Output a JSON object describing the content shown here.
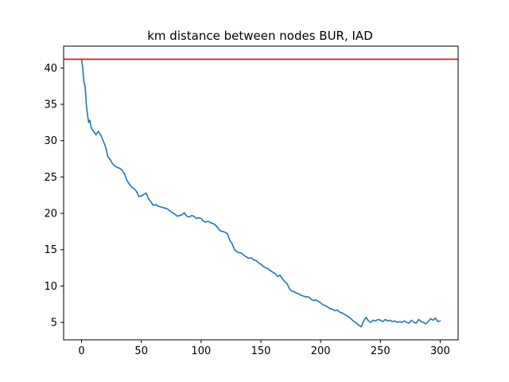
{
  "chart_data": {
    "type": "line",
    "title": "km distance between nodes BUR, IAD",
    "xlabel": "",
    "ylabel": "",
    "xlim": [
      -15,
      315
    ],
    "ylim": [
      2.6,
      43.0
    ],
    "x_ticks": [
      0,
      50,
      100,
      150,
      200,
      250,
      300
    ],
    "y_ticks": [
      5,
      10,
      15,
      20,
      25,
      30,
      35,
      40
    ],
    "grid": false,
    "legend": "none",
    "reference_line": {
      "y": 41.2,
      "color": "#ff0000"
    },
    "series": [
      {
        "color": "#1f77b4",
        "x": [
          0,
          1,
          2,
          3,
          4,
          5,
          6,
          7,
          8,
          9,
          10,
          12,
          14,
          15,
          16,
          18,
          20,
          22,
          24,
          26,
          28,
          30,
          32,
          34,
          36,
          38,
          40,
          42,
          44,
          46,
          48,
          50,
          52,
          54,
          56,
          58,
          60,
          62,
          64,
          66,
          68,
          70,
          72,
          74,
          76,
          78,
          80,
          82,
          84,
          86,
          88,
          90,
          92,
          94,
          96,
          98,
          100,
          102,
          104,
          106,
          108,
          110,
          112,
          114,
          116,
          118,
          120,
          122,
          124,
          126,
          128,
          130,
          132,
          134,
          136,
          138,
          140,
          142,
          144,
          146,
          148,
          150,
          152,
          154,
          156,
          158,
          160,
          162,
          164,
          166,
          168,
          170,
          172,
          174,
          176,
          178,
          180,
          182,
          184,
          186,
          188,
          190,
          192,
          194,
          196,
          198,
          200,
          202,
          204,
          206,
          208,
          210,
          212,
          214,
          216,
          218,
          220,
          222,
          224,
          226,
          228,
          230,
          232,
          234,
          236,
          238,
          240,
          242,
          244,
          246,
          248,
          250,
          252,
          254,
          256,
          258,
          260,
          262,
          264,
          266,
          268,
          270,
          272,
          274,
          276,
          278,
          280,
          282,
          284,
          286,
          288,
          290,
          292,
          294,
          296,
          298,
          300
        ],
        "values": [
          41.2,
          40.0,
          38.0,
          37.5,
          35.0,
          33.5,
          32.5,
          32.8,
          31.8,
          31.5,
          31.3,
          30.8,
          31.3,
          31.0,
          30.8,
          30.0,
          29.2,
          27.8,
          27.4,
          26.8,
          26.5,
          26.3,
          26.2,
          25.9,
          25.4,
          24.5,
          24.0,
          23.6,
          23.4,
          23.0,
          22.3,
          22.4,
          22.6,
          22.8,
          22.0,
          21.6,
          21.1,
          21.2,
          21.0,
          20.9,
          20.8,
          20.7,
          20.6,
          20.3,
          20.1,
          19.9,
          19.6,
          19.7,
          19.8,
          20.1,
          19.6,
          19.5,
          19.7,
          19.6,
          19.3,
          19.4,
          19.3,
          18.9,
          18.8,
          18.9,
          18.7,
          18.6,
          18.4,
          18.0,
          17.6,
          17.5,
          17.4,
          17.2,
          16.3,
          15.8,
          15.0,
          14.7,
          14.6,
          14.5,
          14.2,
          14.0,
          13.8,
          13.9,
          13.6,
          13.5,
          13.2,
          13.0,
          12.7,
          12.5,
          12.4,
          12.1,
          11.9,
          11.7,
          11.3,
          11.5,
          11.0,
          10.6,
          10.3,
          9.6,
          9.3,
          9.2,
          9.0,
          8.9,
          8.7,
          8.6,
          8.5,
          8.5,
          8.2,
          8.0,
          8.1,
          7.9,
          7.7,
          7.4,
          7.3,
          7.1,
          6.9,
          6.8,
          6.6,
          6.7,
          6.4,
          6.3,
          6.1,
          5.9,
          5.7,
          5.4,
          5.1,
          4.9,
          4.6,
          4.4,
          5.2,
          5.7,
          5.2,
          5.0,
          5.3,
          5.2,
          5.4,
          5.3,
          5.1,
          5.4,
          5.2,
          5.3,
          5.1,
          5.2,
          5.0,
          5.1,
          5.0,
          5.2,
          5.0,
          4.9,
          5.3,
          5.0,
          4.9,
          5.4,
          5.1,
          5.0,
          4.8,
          5.1,
          5.5,
          5.3,
          5.6,
          5.1,
          5.2
        ]
      }
    ]
  }
}
